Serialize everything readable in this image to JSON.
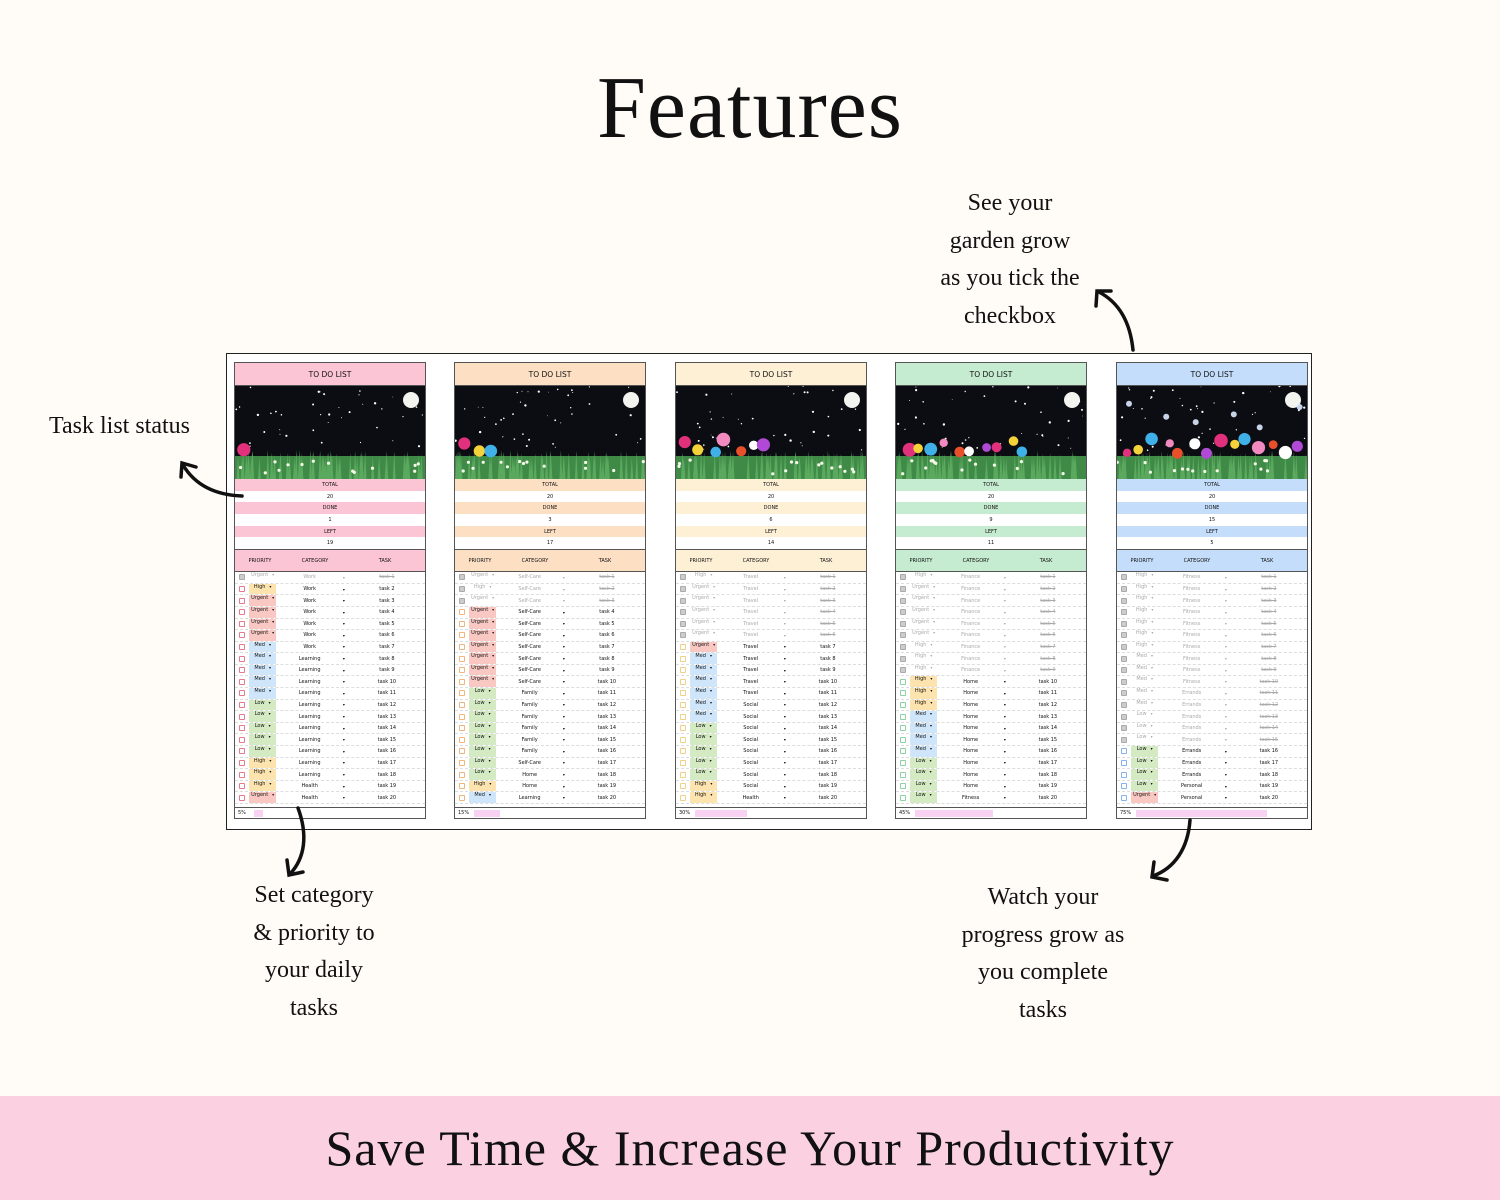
{
  "title": "Features",
  "annotations": {
    "status": [
      "Task list status"
    ],
    "garden": [
      "See your",
      "garden grow",
      "as you tick the",
      "checkbox"
    ],
    "category": [
      "Set category",
      "& priority to",
      "your daily",
      "tasks"
    ],
    "progress": [
      "Watch your",
      "progress grow as",
      "you complete",
      "tasks"
    ]
  },
  "banner": "Save Time & Increase Your Productivity",
  "priority_colors": {
    "Urgent": "#f9c8c3",
    "High": "#fde3ae",
    "Med": "#cfe6fa",
    "Low": "#d4eac3"
  },
  "labels": {
    "total": "TOTAL",
    "done": "DONE",
    "left": "LEFT",
    "priority": "PRIORITY",
    "category": "CATEGORY",
    "task": "TASK"
  },
  "panels": [
    {
      "title": "TO DO LIST",
      "theme": "#fcc5d5",
      "checkbox": "#e57a90",
      "total": "20",
      "done": "1",
      "left": "19",
      "progress": "5%",
      "progress_value": 5,
      "rows": [
        [
          "Urgent",
          "Work",
          "task 1",
          true
        ],
        [
          "High",
          "Work",
          "task 2",
          false
        ],
        [
          "Urgent",
          "Work",
          "task 3",
          false
        ],
        [
          "Urgent",
          "Work",
          "task 4",
          false
        ],
        [
          "Urgent",
          "Work",
          "task 5",
          false
        ],
        [
          "Urgent",
          "Work",
          "task 6",
          false
        ],
        [
          "Med",
          "Work",
          "task 7",
          false
        ],
        [
          "Med",
          "Learning",
          "task 8",
          false
        ],
        [
          "Med",
          "Learning",
          "task 9",
          false
        ],
        [
          "Med",
          "Learning",
          "task 10",
          false
        ],
        [
          "Med",
          "Learning",
          "task 11",
          false
        ],
        [
          "Low",
          "Learning",
          "task 12",
          false
        ],
        [
          "Low",
          "Learning",
          "task 13",
          false
        ],
        [
          "Low",
          "Learning",
          "task 14",
          false
        ],
        [
          "Low",
          "Learning",
          "task 15",
          false
        ],
        [
          "Low",
          "Learning",
          "task 16",
          false
        ],
        [
          "High",
          "Learning",
          "task 17",
          false
        ],
        [
          "High",
          "Learning",
          "task 18",
          false
        ],
        [
          "High",
          "Health",
          "task 19",
          false
        ],
        [
          "Urgent",
          "Health",
          "task 20",
          false
        ]
      ]
    },
    {
      "title": "TO DO LIST",
      "theme": "#fddfc4",
      "checkbox": "#f2b57c",
      "total": "20",
      "done": "3",
      "left": "17",
      "progress": "15%",
      "progress_value": 15,
      "rows": [
        [
          "Urgent",
          "Self-Care",
          "task 1",
          true
        ],
        [
          "High",
          "Self-Care",
          "task 2",
          true
        ],
        [
          "Urgent",
          "Self-Care",
          "task 3",
          true
        ],
        [
          "Urgent",
          "Self-Care",
          "task 4",
          false
        ],
        [
          "Urgent",
          "Self-Care",
          "task 5",
          false
        ],
        [
          "Urgent",
          "Self-Care",
          "task 6",
          false
        ],
        [
          "Urgent",
          "Self-Care",
          "task 7",
          false
        ],
        [
          "Urgent",
          "Self-Care",
          "task 8",
          false
        ],
        [
          "Urgent",
          "Self-Care",
          "task 9",
          false
        ],
        [
          "Urgent",
          "Self-Care",
          "task 10",
          false
        ],
        [
          "Low",
          "Family",
          "task 11",
          false
        ],
        [
          "Low",
          "Family",
          "task 12",
          false
        ],
        [
          "Low",
          "Family",
          "task 13",
          false
        ],
        [
          "Low",
          "Family",
          "task 14",
          false
        ],
        [
          "Low",
          "Family",
          "task 15",
          false
        ],
        [
          "Low",
          "Family",
          "task 16",
          false
        ],
        [
          "Low",
          "Self-Care",
          "task 17",
          false
        ],
        [
          "Low",
          "Home",
          "task 18",
          false
        ],
        [
          "High",
          "Home",
          "task 19",
          false
        ],
        [
          "Med",
          "Learning",
          "task 20",
          false
        ]
      ]
    },
    {
      "title": "TO DO LIST",
      "theme": "#fdf0d5",
      "checkbox": "#f0d08a",
      "total": "20",
      "done": "6",
      "left": "14",
      "progress": "30%",
      "progress_value": 30,
      "rows": [
        [
          "High",
          "Travel",
          "task 1",
          true
        ],
        [
          "Urgent",
          "Travel",
          "task 2",
          true
        ],
        [
          "Urgent",
          "Travel",
          "task 3",
          true
        ],
        [
          "Urgent",
          "Travel",
          "task 4",
          true
        ],
        [
          "Urgent",
          "Travel",
          "task 5",
          true
        ],
        [
          "Urgent",
          "Travel",
          "task 6",
          true
        ],
        [
          "Urgent",
          "Travel",
          "task 7",
          false
        ],
        [
          "Med",
          "Travel",
          "task 8",
          false
        ],
        [
          "Med",
          "Travel",
          "task 9",
          false
        ],
        [
          "Med",
          "Travel",
          "task 10",
          false
        ],
        [
          "Med",
          "Travel",
          "task 11",
          false
        ],
        [
          "Med",
          "Social",
          "task 12",
          false
        ],
        [
          "Med",
          "Social",
          "task 13",
          false
        ],
        [
          "Low",
          "Social",
          "task 14",
          false
        ],
        [
          "Low",
          "Social",
          "task 15",
          false
        ],
        [
          "Low",
          "Social",
          "task 16",
          false
        ],
        [
          "Low",
          "Social",
          "task 17",
          false
        ],
        [
          "Low",
          "Social",
          "task 18",
          false
        ],
        [
          "High",
          "Social",
          "task 19",
          false
        ],
        [
          "High",
          "Health",
          "task 20",
          false
        ]
      ]
    },
    {
      "title": "TO DO LIST",
      "theme": "#c5ebd1",
      "checkbox": "#8fd1a6",
      "total": "20",
      "done": "9",
      "left": "11",
      "progress": "45%",
      "progress_value": 45,
      "rows": [
        [
          "High",
          "Finance",
          "task 1",
          true
        ],
        [
          "Urgent",
          "Finance",
          "task 2",
          true
        ],
        [
          "Urgent",
          "Finance",
          "task 3",
          true
        ],
        [
          "Urgent",
          "Finance",
          "task 4",
          true
        ],
        [
          "Urgent",
          "Finance",
          "task 5",
          true
        ],
        [
          "Urgent",
          "Finance",
          "task 6",
          true
        ],
        [
          "High",
          "Finance",
          "task 7",
          true
        ],
        [
          "High",
          "Finance",
          "task 8",
          true
        ],
        [
          "High",
          "Finance",
          "task 9",
          true
        ],
        [
          "High",
          "Home",
          "task 10",
          false
        ],
        [
          "High",
          "Home",
          "task 11",
          false
        ],
        [
          "High",
          "Home",
          "task 12",
          false
        ],
        [
          "Med",
          "Home",
          "task 13",
          false
        ],
        [
          "Med",
          "Home",
          "task 14",
          false
        ],
        [
          "Med",
          "Home",
          "task 15",
          false
        ],
        [
          "Med",
          "Home",
          "task 16",
          false
        ],
        [
          "Low",
          "Home",
          "task 17",
          false
        ],
        [
          "Low",
          "Home",
          "task 18",
          false
        ],
        [
          "Low",
          "Home",
          "task 19",
          false
        ],
        [
          "Low",
          "Fitness",
          "task 20",
          false
        ]
      ]
    },
    {
      "title": "TO DO LIST",
      "theme": "#c4ddfa",
      "checkbox": "#86b3ee",
      "total": "20",
      "done": "15",
      "left": "5",
      "progress": "75%",
      "progress_value": 75,
      "rows": [
        [
          "High",
          "Fitness",
          "task 1",
          true
        ],
        [
          "High",
          "Fitness",
          "task 2",
          true
        ],
        [
          "High",
          "Fitness",
          "task 3",
          true
        ],
        [
          "High",
          "Fitness",
          "task 4",
          true
        ],
        [
          "High",
          "Fitness",
          "task 5",
          true
        ],
        [
          "High",
          "Fitness",
          "task 6",
          true
        ],
        [
          "High",
          "Fitness",
          "task 7",
          true
        ],
        [
          "Med",
          "Fitness",
          "task 8",
          true
        ],
        [
          "Med",
          "Fitness",
          "task 9",
          true
        ],
        [
          "Med",
          "Fitness",
          "task 10",
          true
        ],
        [
          "Med",
          "Errands",
          "task 11",
          true
        ],
        [
          "Med",
          "Errands",
          "task 12",
          true
        ],
        [
          "Low",
          "Errands",
          "task 13",
          true
        ],
        [
          "Low",
          "Errands",
          "task 14",
          true
        ],
        [
          "Low",
          "Errands",
          "task 15",
          true
        ],
        [
          "Low",
          "Errands",
          "task 16",
          false
        ],
        [
          "Low",
          "Errands",
          "task 17",
          false
        ],
        [
          "Low",
          "Errands",
          "task 18",
          false
        ],
        [
          "Low",
          "Personal",
          "task 19",
          false
        ],
        [
          "Urgent",
          "Personal",
          "task 20",
          false
        ]
      ]
    }
  ]
}
